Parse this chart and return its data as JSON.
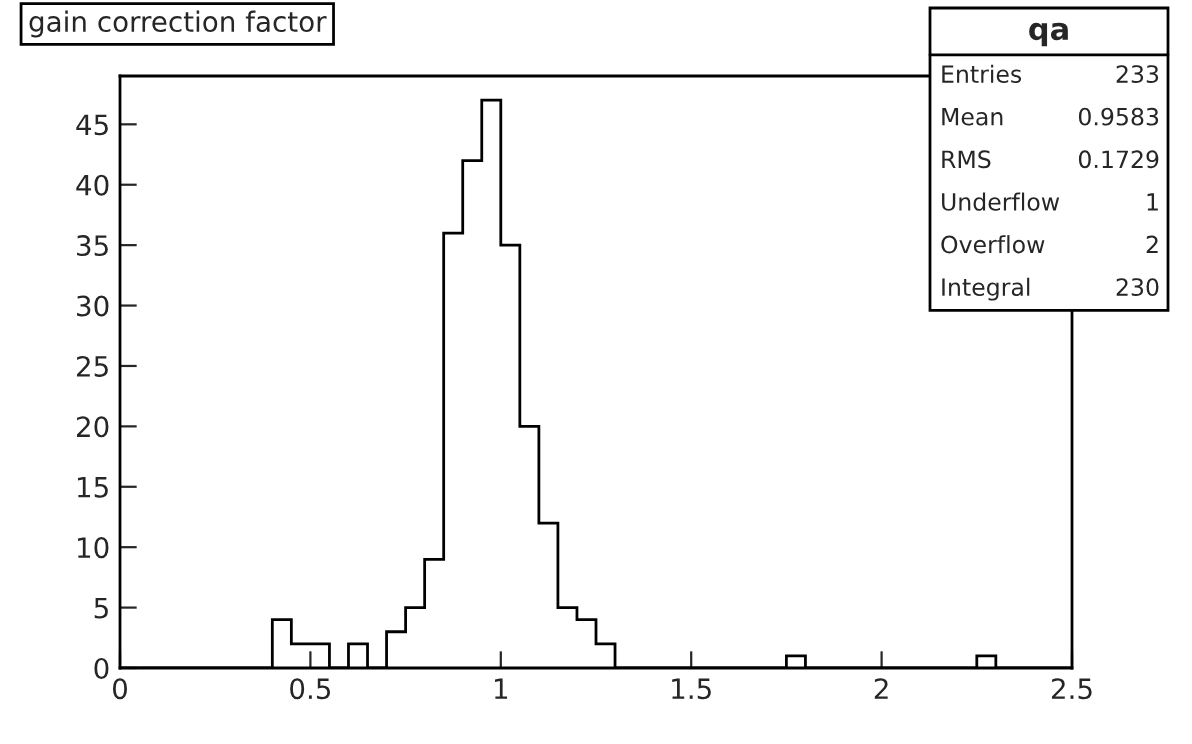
{
  "chart_data": {
    "type": "histogram",
    "title": "gain correction factor",
    "bins": [
      0,
      0.05,
      0.1,
      0.15,
      0.2,
      0.25,
      0.3,
      0.35,
      0.4,
      0.45,
      0.5,
      0.55,
      0.6,
      0.65,
      0.7,
      0.75,
      0.8,
      0.85,
      0.9,
      0.95,
      1.0,
      1.05,
      1.1,
      1.15,
      1.2,
      1.25,
      1.3,
      1.35,
      1.4,
      1.45,
      1.5,
      1.55,
      1.6,
      1.65,
      1.7,
      1.75,
      1.8,
      1.85,
      1.9,
      1.95,
      2.0,
      2.05,
      2.1,
      2.15,
      2.2,
      2.25,
      2.3,
      2.35,
      2.4,
      2.45,
      2.5
    ],
    "values": [
      0,
      0,
      0,
      0,
      0,
      0,
      0,
      0,
      4,
      2,
      2,
      0,
      2,
      0,
      3,
      5,
      9,
      36,
      42,
      47,
      35,
      20,
      12,
      5,
      4,
      2,
      0,
      0,
      0,
      0,
      0,
      0,
      0,
      0,
      0,
      1,
      0,
      0,
      0,
      0,
      0,
      0,
      0,
      0,
      0,
      1,
      0,
      0,
      0,
      0
    ],
    "color": "#000000",
    "xlim": [
      0,
      2.5
    ],
    "xticks": [
      0,
      0.5,
      1,
      1.5,
      2,
      2.5
    ],
    "ylim": [
      0,
      49
    ],
    "yticks": [
      0,
      5,
      10,
      15,
      20,
      25,
      30,
      35,
      40,
      45
    ],
    "annotations": [
      "qa",
      "Entries",
      "233",
      "Mean",
      "0.9583",
      "RMS",
      "0.1729",
      "Underflow",
      "1",
      "Overflow",
      "2",
      "Integral",
      "230"
    ]
  }
}
